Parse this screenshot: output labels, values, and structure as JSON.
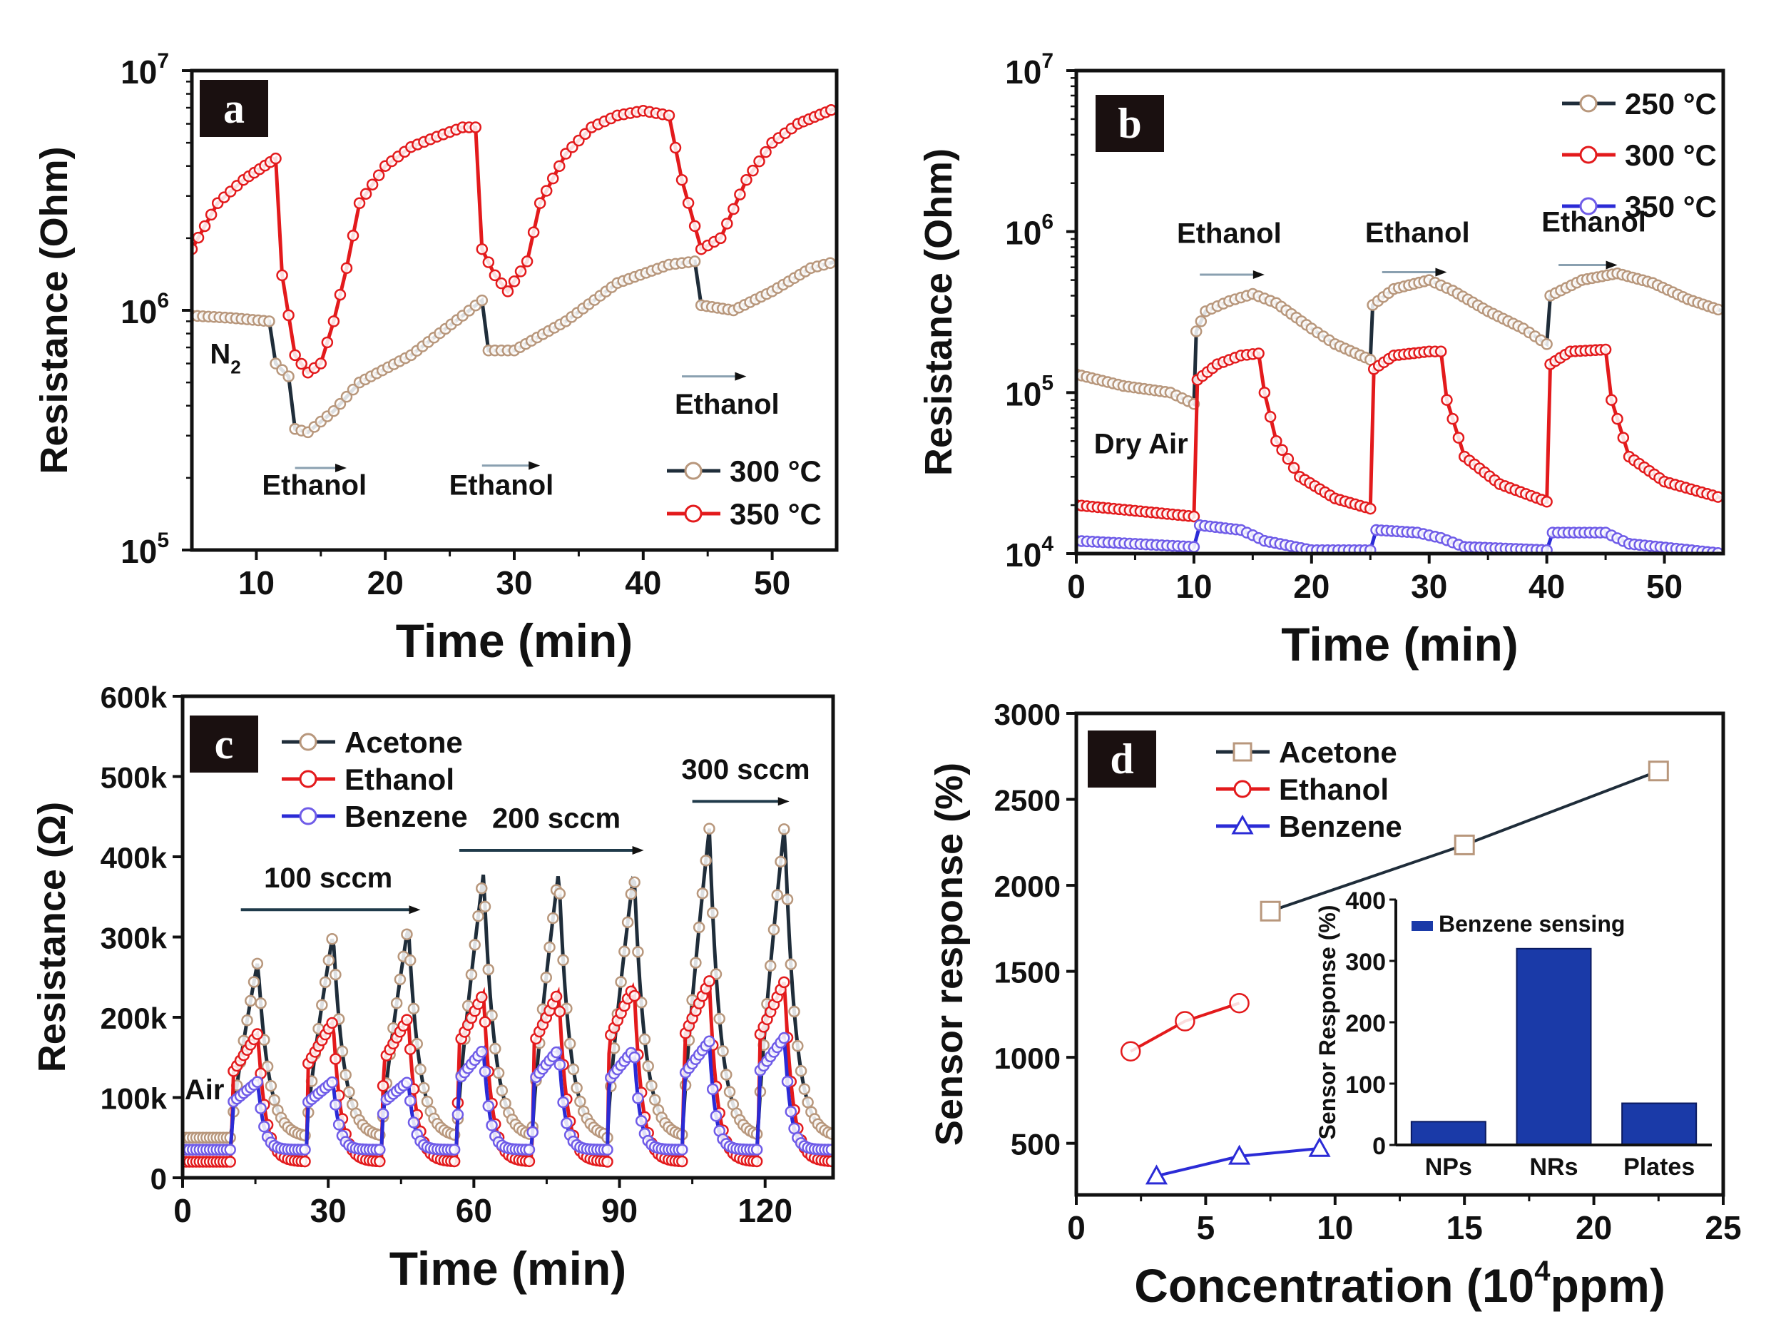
{
  "chart_data": [
    {
      "panel": "a",
      "type": "line",
      "label": "a",
      "xlabel": "Time (min)",
      "ylabel": "Resistance (Ohm)",
      "yscale": "log",
      "xlim": [
        5,
        55
      ],
      "ylim": [
        100000,
        10000000
      ],
      "xticks": [
        10,
        20,
        30,
        40,
        50
      ],
      "ytick_exponents": [
        5,
        6,
        7
      ],
      "series": [
        {
          "name": "300 °C",
          "line": "#1f2d3a",
          "marker": "#b8977c",
          "x": [
            5,
            8,
            11,
            11.5,
            12.5,
            13,
            14,
            16,
            18,
            22,
            26,
            27.5,
            28,
            30,
            34,
            38,
            42,
            44,
            44.5,
            47,
            50,
            53,
            55
          ],
          "y": [
            950000,
            930000,
            900000,
            600000,
            530000,
            320000,
            310000,
            380000,
            500000,
            650000,
            950000,
            1100000,
            680000,
            680000,
            900000,
            1300000,
            1550000,
            1600000,
            1050000,
            1000000,
            1200000,
            1500000,
            1600000
          ]
        },
        {
          "name": "350 °C",
          "line": "#e31a1c",
          "marker": "#e31a1c",
          "x": [
            5,
            7,
            9,
            11.5,
            12,
            13,
            14,
            15,
            16,
            17,
            18,
            20,
            22,
            24,
            26,
            27,
            27.5,
            28.5,
            29.5,
            31,
            32,
            34,
            36,
            38,
            40,
            42,
            43,
            44.5,
            46,
            48,
            50,
            52,
            55
          ],
          "y": [
            1800000,
            2800000,
            3500000,
            4300000,
            1400000,
            650000,
            550000,
            600000,
            900000,
            1500000,
            2800000,
            4000000,
            4800000,
            5300000,
            5800000,
            5800000,
            1800000,
            1400000,
            1200000,
            1600000,
            2800000,
            4500000,
            5800000,
            6500000,
            6800000,
            6500000,
            3500000,
            1800000,
            2000000,
            3500000,
            5000000,
            6000000,
            7000000
          ]
        }
      ],
      "annotations": [
        {
          "text": "N",
          "sub": "2",
          "x": 7.6,
          "y": 600000
        },
        {
          "text": "Ethanol",
          "x": 14.5,
          "y": 170000
        },
        {
          "text": "Ethanol",
          "x": 29,
          "y": 170000
        },
        {
          "text": "Ethanol",
          "x": 46.5,
          "y": 370000
        }
      ],
      "arrows": [
        {
          "x0": 13,
          "x1": 17,
          "y": 220000
        },
        {
          "x0": 27.5,
          "x1": 32,
          "y": 225000
        },
        {
          "x0": 43,
          "x1": 48,
          "y": 530000
        }
      ]
    },
    {
      "panel": "b",
      "type": "line",
      "label": "b",
      "xlabel": "Time (min)",
      "ylabel": "Resistance (Ohm)",
      "yscale": "log",
      "xlim": [
        0,
        55
      ],
      "ylim": [
        10000,
        10000000
      ],
      "xticks": [
        0,
        10,
        20,
        30,
        40,
        50
      ],
      "ytick_exponents": [
        4,
        5,
        6,
        7
      ],
      "series": [
        {
          "name": "250 °C",
          "line": "#1f2d3a",
          "marker": "#b8977c",
          "x": [
            0,
            4,
            8,
            10,
            10.2,
            11,
            13,
            15,
            17,
            20,
            22,
            25,
            25.2,
            27,
            30,
            32,
            35,
            38,
            40,
            40.3,
            43,
            46,
            49,
            52,
            55
          ],
          "y": [
            130000,
            110000,
            100000,
            85000,
            240000,
            320000,
            370000,
            410000,
            360000,
            250000,
            200000,
            160000,
            350000,
            440000,
            500000,
            430000,
            320000,
            250000,
            200000,
            400000,
            500000,
            550000,
            480000,
            380000,
            320000
          ]
        },
        {
          "name": "300 °C",
          "line": "#e31a1c",
          "marker": "#e31a1c",
          "x": [
            0,
            10,
            10.3,
            12,
            14,
            15.5,
            16,
            17,
            19,
            22,
            25,
            25.3,
            27,
            30,
            31,
            31.5,
            33,
            36,
            40,
            40.3,
            42,
            45,
            45.5,
            47,
            50,
            55
          ],
          "y": [
            20000,
            17000,
            120000,
            150000,
            170000,
            175000,
            100000,
            50000,
            30000,
            22000,
            19000,
            140000,
            170000,
            180000,
            180000,
            90000,
            40000,
            27000,
            21000,
            150000,
            180000,
            185000,
            90000,
            40000,
            28000,
            22000
          ]
        },
        {
          "name": "350 °C",
          "line": "#2b2bd6",
          "marker": "#6f5ce8",
          "x": [
            0,
            10,
            10.5,
            14,
            15,
            16,
            20,
            25,
            25.5,
            29,
            31,
            33,
            40,
            40.5,
            45,
            47,
            55
          ],
          "y": [
            12000,
            11000,
            15000,
            14000,
            13000,
            12000,
            10500,
            10500,
            14000,
            13500,
            12500,
            11000,
            10500,
            13500,
            13500,
            11500,
            10000
          ]
        }
      ],
      "annotations": [
        {
          "text": "Ethanol",
          "x": 13,
          "y": 850000
        },
        {
          "text": "Ethanol",
          "x": 29,
          "y": 860000
        },
        {
          "text": "Ethanol",
          "x": 44,
          "y": 1000000
        },
        {
          "text": "Dry Air",
          "x": 5.5,
          "y": 42000
        }
      ],
      "arrows": [
        {
          "x0": 10.5,
          "x1": 16,
          "y": 540000
        },
        {
          "x0": 26,
          "x1": 31.5,
          "y": 560000
        },
        {
          "x0": 41,
          "x1": 46,
          "y": 620000
        }
      ]
    },
    {
      "panel": "c",
      "type": "line",
      "label": "c",
      "xlabel": "Time (min)",
      "ylabel": "Resistance (Ω)",
      "yscale": "linear",
      "xlim": [
        0,
        134
      ],
      "ylim": [
        0,
        600000
      ],
      "xticks": [
        0,
        30,
        60,
        90,
        120
      ],
      "yticks": [
        0,
        100000,
        200000,
        300000,
        400000,
        500000,
        600000
      ],
      "ytick_labels": [
        "0",
        "100k",
        "200k",
        "300k",
        "400k",
        "500k",
        "600k"
      ],
      "pulse_onsets": [
        10,
        25.5,
        41,
        56.5,
        72,
        87.5,
        103,
        118.5
      ],
      "series": [
        {
          "name": "Acetone",
          "line": "#1f2d3a",
          "marker": "#b8977c",
          "baseline": 50000,
          "peaks": [
            270000,
            305000,
            315000,
            380000,
            383000,
            383000,
            435000,
            440000
          ]
        },
        {
          "name": "Ethanol",
          "line": "#e31a1c",
          "marker": "#e31a1c",
          "baseline": 20000,
          "peaks": [
            180000,
            195000,
            200000,
            230000,
            232000,
            240000,
            245000,
            245000
          ]
        },
        {
          "name": "Benzene",
          "line": "#2b2bd6",
          "marker": "#6f5ce8",
          "baseline": 35000,
          "peaks": [
            120000,
            120000,
            120000,
            160000,
            160000,
            160000,
            170000,
            175000
          ]
        }
      ],
      "annotations": [
        {
          "text": "Air",
          "x": 4.5,
          "y": 98000
        },
        {
          "text": "100 sccm",
          "x": 30,
          "y": 362000
        },
        {
          "text": "200 sccm",
          "x": 77,
          "y": 436000
        },
        {
          "text": "300 sccm",
          "x": 116,
          "y": 497000
        }
      ],
      "arrows": [
        {
          "x0": 12,
          "x1": 49,
          "y": 334000
        },
        {
          "x0": 57,
          "x1": 95,
          "y": 408000
        },
        {
          "x0": 105,
          "x1": 125,
          "y": 469000
        }
      ]
    },
    {
      "panel": "d",
      "type": "line",
      "label": "d",
      "xlabel": "Concentration (10",
      "xlabel_sup": "4",
      "xlabel_end": "ppm)",
      "ylabel": "Sensor response (%)",
      "yscale": "linear",
      "xlim": [
        0,
        25
      ],
      "ylim": [
        200,
        3000
      ],
      "xticks": [
        0,
        5,
        10,
        15,
        20,
        25
      ],
      "yticks": [
        500,
        1000,
        1500,
        2000,
        2500,
        3000
      ],
      "ytick_labels": [
        "500",
        "1000",
        "1500",
        "2000",
        "2500",
        "3000"
      ],
      "series": [
        {
          "name": "Acetone",
          "line": "#1f2d3a",
          "marker": "#b8977c",
          "shape": "square",
          "x": [
            7.5,
            15,
            22.5
          ],
          "y": [
            1850,
            2235,
            2665
          ]
        },
        {
          "name": "Ethanol",
          "line": "#e31a1c",
          "marker": "#e31a1c",
          "shape": "circle",
          "x": [
            2.1,
            4.2,
            6.3
          ],
          "y": [
            1035,
            1210,
            1315
          ]
        },
        {
          "name": "Benzene",
          "line": "#2b2bd6",
          "marker": "#2b2bd6",
          "shape": "triangle",
          "x": [
            3.1,
            6.3,
            9.4
          ],
          "y": [
            310,
            425,
            470
          ]
        }
      ],
      "inset": {
        "type": "bar",
        "legend": "Benzene sensing",
        "ylabel": "Sensor Response (%)",
        "ylim": [
          0,
          400
        ],
        "yticks": [
          0,
          100,
          200,
          300,
          400
        ],
        "categories": [
          "NPs",
          "NRs",
          "Plates"
        ],
        "values": [
          38,
          320,
          68
        ],
        "color": "#1a3aa8"
      }
    }
  ]
}
